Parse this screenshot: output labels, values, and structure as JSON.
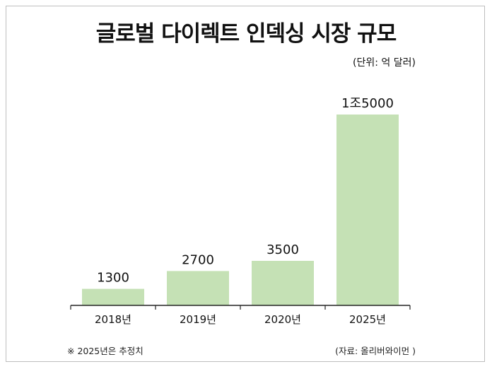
{
  "title": "글로벌 다이렉트 인덱싱 시장 규모",
  "unit_note": "(단위: 억 달러)",
  "footnote": "※ 2025년은 추정치",
  "source": "(자료: 올리버와이먼 )",
  "colors": {
    "bar": "#c5e1b5",
    "axis": "#222222",
    "text": "#111111"
  },
  "chart_data": {
    "type": "bar",
    "categories": [
      "2018년",
      "2019년",
      "2020년",
      "2025년"
    ],
    "values": [
      1300,
      2700,
      3500,
      15000
    ],
    "data_labels": [
      "1300",
      "2700",
      "3500",
      "1조5000"
    ],
    "title": "글로벌 다이렉트 인덱싱 시장 규모",
    "xlabel": "",
    "ylabel": "",
    "ylim": [
      0,
      16000
    ],
    "grid": false,
    "legend": "none"
  }
}
